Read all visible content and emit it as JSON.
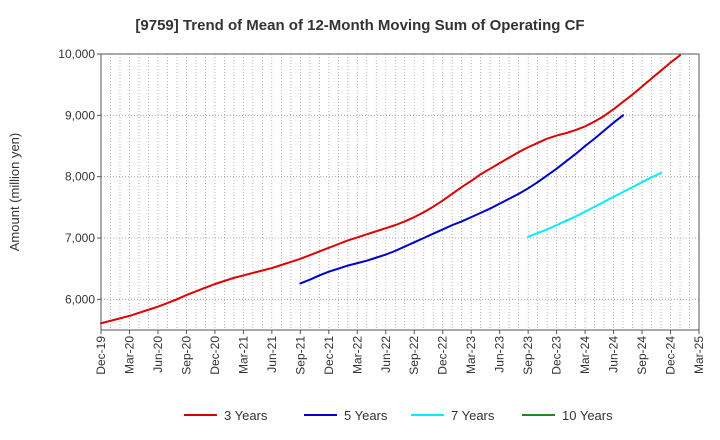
{
  "chart_data": {
    "type": "line",
    "title": "[9759]  Trend of Mean of 12-Month Moving Sum of Operating CF",
    "xlabel": "",
    "ylabel": "Amount (million yen)",
    "ylim": [
      5500,
      10000
    ],
    "yticks": [
      6000,
      7000,
      8000,
      9000,
      10000
    ],
    "ytick_labels": [
      "6,000",
      "7,000",
      "8,000",
      "9,000",
      "10,000"
    ],
    "x_start": "Dec-19",
    "x_end": "Mar-25",
    "tick_labels": [
      "Dec-19",
      "Mar-20",
      "Jun-20",
      "Sep-20",
      "Dec-20",
      "Mar-21",
      "Jun-21",
      "Sep-21",
      "Dec-21",
      "Mar-22",
      "Jun-22",
      "Sep-22",
      "Dec-22",
      "Mar-23",
      "Jun-23",
      "Sep-23",
      "Dec-23",
      "Mar-24",
      "Jun-24",
      "Sep-24",
      "Dec-24",
      "Mar-25"
    ],
    "grid": true,
    "legend_position": "bottom",
    "series": [
      {
        "name": "3 Years",
        "color": "#dd0000",
        "start_index": 0,
        "values": [
          5610,
          5650,
          5690,
          5730,
          5780,
          5830,
          5880,
          5940,
          6000,
          6070,
          6130,
          6190,
          6250,
          6300,
          6350,
          6390,
          6430,
          6470,
          6510,
          6560,
          6610,
          6660,
          6720,
          6780,
          6840,
          6900,
          6960,
          7010,
          7060,
          7110,
          7160,
          7210,
          7270,
          7340,
          7420,
          7510,
          7610,
          7720,
          7830,
          7930,
          8040,
          8130,
          8220,
          8310,
          8400,
          8480,
          8550,
          8620,
          8670,
          8710,
          8760,
          8820,
          8900,
          8990,
          9100,
          9220,
          9340,
          9470,
          9600,
          9730,
          9860,
          9980
        ]
      },
      {
        "name": "5 Years",
        "color": "#0000cc",
        "start_index": 21,
        "values": [
          6260,
          6320,
          6390,
          6450,
          6500,
          6550,
          6590,
          6630,
          6680,
          6730,
          6790,
          6860,
          6930,
          7000,
          7070,
          7140,
          7210,
          7270,
          7340,
          7410,
          7480,
          7560,
          7640,
          7720,
          7810,
          7910,
          8020,
          8130,
          8250,
          8370,
          8500,
          8620,
          8750,
          8880,
          9000
        ]
      },
      {
        "name": "7 Years",
        "color": "#00eeff",
        "start_index": 45,
        "values": [
          7020,
          7080,
          7140,
          7210,
          7280,
          7350,
          7430,
          7510,
          7590,
          7670,
          7750,
          7830,
          7910,
          7990,
          8060
        ]
      },
      {
        "name": "10 Years",
        "color": "#228822",
        "start_index": 0,
        "values": []
      }
    ]
  }
}
